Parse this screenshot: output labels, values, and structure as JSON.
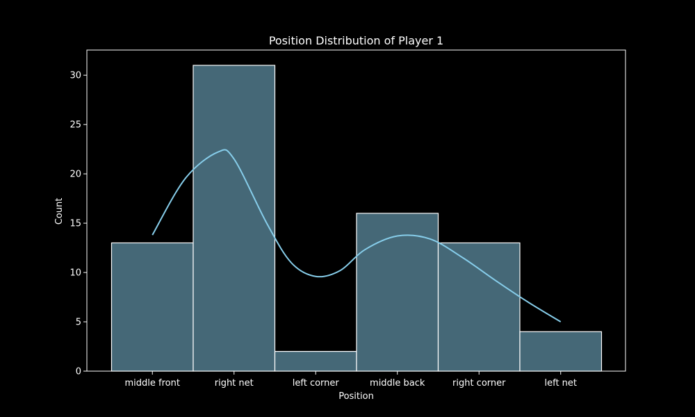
{
  "chart_data": {
    "type": "bar",
    "title": "Position Distribution of Player 1",
    "xlabel": "Position",
    "ylabel": "Count",
    "categories": [
      "middle front",
      "right net",
      "left corner",
      "middle back",
      "right corner",
      "left net"
    ],
    "values": [
      13,
      31,
      2,
      16,
      13,
      4
    ],
    "ylim": [
      0,
      32.55
    ],
    "yticks": [
      0,
      5,
      10,
      15,
      20,
      25,
      30
    ],
    "grid": false,
    "legend": "none",
    "kde": {
      "x": [
        0,
        0.4,
        0.8,
        1.0,
        1.4,
        1.7,
        2.0,
        2.3,
        2.6,
        3.0,
        3.4,
        3.8,
        4.2,
        4.6,
        5.0
      ],
      "y": [
        13.8,
        19.5,
        22.2,
        21.5,
        15.0,
        11.0,
        9.6,
        10.2,
        12.3,
        13.7,
        13.4,
        11.5,
        9.2,
        7.0,
        5.0
      ]
    },
    "colors": {
      "background": "#000000",
      "bar_fill": "#456877",
      "bar_edge": "#ffffff",
      "kde_line": "#87ceeb",
      "axes": "#ffffff",
      "text": "#ffffff"
    }
  }
}
